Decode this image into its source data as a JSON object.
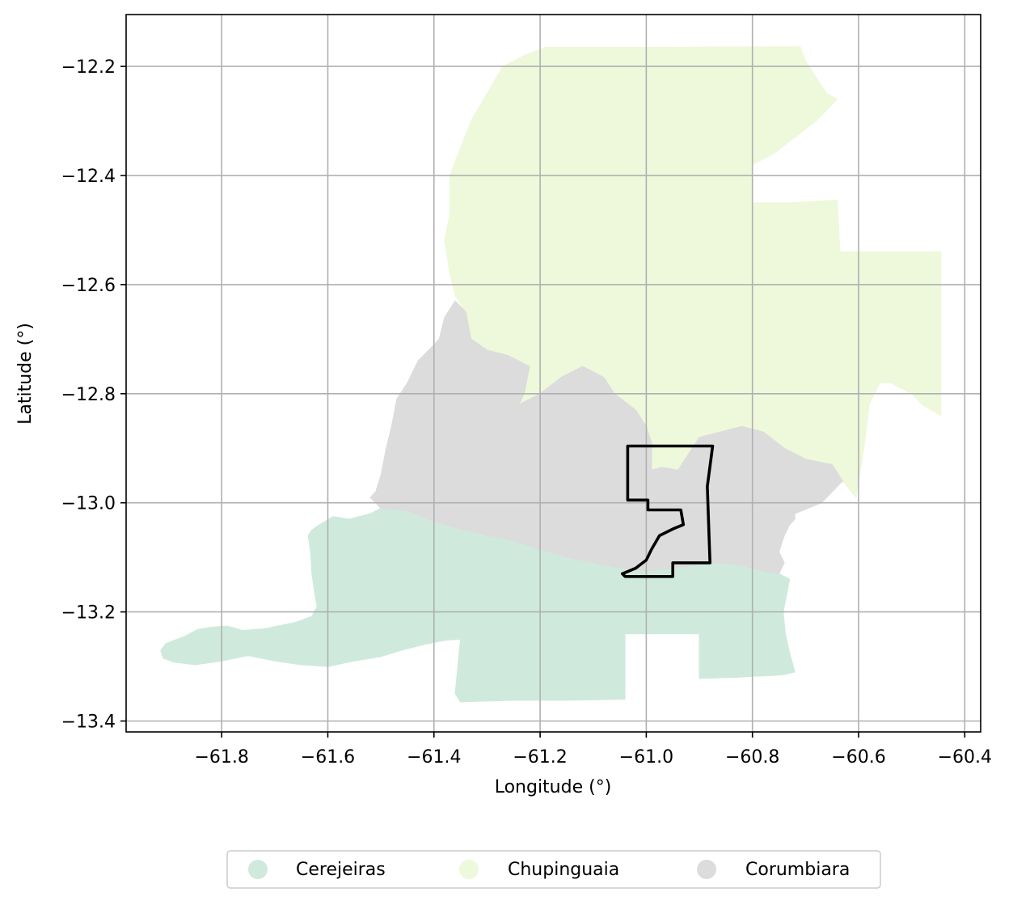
{
  "chart_data": {
    "type": "map",
    "xlabel": "Longitude (°)",
    "ylabel": "Latitude (°)",
    "xlim": [
      -61.98,
      -60.37
    ],
    "ylim": [
      -13.42,
      -12.105
    ],
    "x_ticks": [
      -61.8,
      -61.6,
      -61.4,
      -61.2,
      -61.0,
      -60.8,
      -60.6,
      -60.4
    ],
    "x_tick_labels": [
      "−61.8",
      "−61.6",
      "−61.4",
      "−61.2",
      "−61.0",
      "−60.8",
      "−60.6",
      "−60.4"
    ],
    "y_ticks": [
      -12.2,
      -12.4,
      -12.6,
      -12.8,
      -13.0,
      -13.2,
      -13.4
    ],
    "y_tick_labels": [
      "−12.2",
      "−12.4",
      "−12.6",
      "−12.8",
      "−13.0",
      "−13.2",
      "−13.4"
    ],
    "grid": true,
    "legend_position": "bottom-center, outside plot",
    "regions": [
      {
        "name": "Cerejeiras",
        "color": "#cfeadd",
        "polygon": [
          [
            -61.915,
            -13.271
          ],
          [
            -61.905,
            -13.258
          ],
          [
            -61.87,
            -13.245
          ],
          [
            -61.845,
            -13.232
          ],
          [
            -61.82,
            -13.228
          ],
          [
            -61.79,
            -13.226
          ],
          [
            -61.76,
            -13.234
          ],
          [
            -61.72,
            -13.231
          ],
          [
            -61.69,
            -13.225
          ],
          [
            -61.66,
            -13.219
          ],
          [
            -61.63,
            -13.208
          ],
          [
            -61.62,
            -13.19
          ],
          [
            -61.625,
            -13.165
          ],
          [
            -61.63,
            -13.13
          ],
          [
            -61.632,
            -13.095
          ],
          [
            -61.637,
            -13.06
          ],
          [
            -61.63,
            -13.05
          ],
          [
            -61.62,
            -13.043
          ],
          [
            -61.59,
            -13.025
          ],
          [
            -61.56,
            -13.03
          ],
          [
            -61.52,
            -13.02
          ],
          [
            -61.5,
            -13.01
          ],
          [
            -61.45,
            -13.015
          ],
          [
            -61.4,
            -13.035
          ],
          [
            -61.35,
            -13.048
          ],
          [
            -61.3,
            -13.06
          ],
          [
            -61.25,
            -13.07
          ],
          [
            -61.2,
            -13.085
          ],
          [
            -61.15,
            -13.1
          ],
          [
            -61.1,
            -13.11
          ],
          [
            -61.05,
            -13.12
          ],
          [
            -61.0,
            -13.125
          ],
          [
            -60.95,
            -13.12
          ],
          [
            -60.9,
            -13.113
          ],
          [
            -60.86,
            -13.11
          ],
          [
            -60.82,
            -13.115
          ],
          [
            -60.78,
            -13.125
          ],
          [
            -60.75,
            -13.13
          ],
          [
            -60.73,
            -13.14
          ],
          [
            -60.735,
            -13.165
          ],
          [
            -60.742,
            -13.2
          ],
          [
            -60.738,
            -13.24
          ],
          [
            -60.73,
            -13.275
          ],
          [
            -60.72,
            -13.31
          ],
          [
            -60.74,
            -13.315
          ],
          [
            -60.77,
            -13.317
          ],
          [
            -60.8,
            -13.318
          ],
          [
            -60.83,
            -13.32
          ],
          [
            -60.9,
            -13.322
          ],
          [
            -60.9,
            -13.24
          ],
          [
            -60.94,
            -13.24
          ],
          [
            -61.0,
            -13.24
          ],
          [
            -61.04,
            -13.24
          ],
          [
            -61.04,
            -13.36
          ],
          [
            -61.15,
            -13.362
          ],
          [
            -61.25,
            -13.362
          ],
          [
            -61.35,
            -13.365
          ],
          [
            -61.36,
            -13.35
          ],
          [
            -61.355,
            -13.3
          ],
          [
            -61.35,
            -13.25
          ],
          [
            -61.38,
            -13.252
          ],
          [
            -61.42,
            -13.26
          ],
          [
            -61.46,
            -13.27
          ],
          [
            -61.5,
            -13.282
          ],
          [
            -61.55,
            -13.29
          ],
          [
            -61.6,
            -13.3
          ],
          [
            -61.65,
            -13.297
          ],
          [
            -61.7,
            -13.29
          ],
          [
            -61.75,
            -13.28
          ],
          [
            -61.8,
            -13.29
          ],
          [
            -61.85,
            -13.297
          ],
          [
            -61.89,
            -13.292
          ],
          [
            -61.91,
            -13.285
          ]
        ]
      },
      {
        "name": "Chupinguaia",
        "color": "#eef8db",
        "polygon": [
          [
            -61.19,
            -12.165
          ],
          [
            -61.0,
            -12.165
          ],
          [
            -60.71,
            -12.164
          ],
          [
            -60.7,
            -12.19
          ],
          [
            -60.68,
            -12.22
          ],
          [
            -60.66,
            -12.25
          ],
          [
            -60.64,
            -12.26
          ],
          [
            -60.65,
            -12.27
          ],
          [
            -60.68,
            -12.3
          ],
          [
            -60.72,
            -12.33
          ],
          [
            -60.76,
            -12.36
          ],
          [
            -60.8,
            -12.38
          ],
          [
            -60.8,
            -12.45
          ],
          [
            -60.73,
            -12.45
          ],
          [
            -60.64,
            -12.445
          ],
          [
            -60.635,
            -12.54
          ],
          [
            -60.55,
            -12.54
          ],
          [
            -60.445,
            -12.54
          ],
          [
            -60.445,
            -12.84
          ],
          [
            -60.48,
            -12.82
          ],
          [
            -60.5,
            -12.8
          ],
          [
            -60.54,
            -12.78
          ],
          [
            -60.56,
            -12.78
          ],
          [
            -60.58,
            -12.82
          ],
          [
            -60.59,
            -12.9
          ],
          [
            -60.6,
            -12.96
          ],
          [
            -60.605,
            -12.99
          ],
          [
            -60.63,
            -12.96
          ],
          [
            -60.65,
            -12.93
          ],
          [
            -60.7,
            -12.92
          ],
          [
            -60.74,
            -12.9
          ],
          [
            -60.78,
            -12.87
          ],
          [
            -60.82,
            -12.86
          ],
          [
            -60.86,
            -12.87
          ],
          [
            -60.9,
            -12.88
          ],
          [
            -60.94,
            -12.94
          ],
          [
            -60.97,
            -12.935
          ],
          [
            -60.99,
            -12.94
          ],
          [
            -60.99,
            -12.89
          ],
          [
            -61.0,
            -12.86
          ],
          [
            -61.02,
            -12.83
          ],
          [
            -61.06,
            -12.8
          ],
          [
            -61.08,
            -12.77
          ],
          [
            -61.12,
            -12.75
          ],
          [
            -61.16,
            -12.77
          ],
          [
            -61.2,
            -12.8
          ],
          [
            -61.24,
            -12.82
          ],
          [
            -61.23,
            -12.8
          ],
          [
            -61.22,
            -12.75
          ],
          [
            -61.26,
            -12.73
          ],
          [
            -61.3,
            -12.72
          ],
          [
            -61.33,
            -12.7
          ],
          [
            -61.34,
            -12.65
          ],
          [
            -61.36,
            -12.62
          ],
          [
            -61.37,
            -12.58
          ],
          [
            -61.38,
            -12.52
          ],
          [
            -61.37,
            -12.47
          ],
          [
            -61.37,
            -12.4
          ],
          [
            -61.35,
            -12.35
          ],
          [
            -61.33,
            -12.3
          ],
          [
            -61.3,
            -12.25
          ],
          [
            -61.27,
            -12.2
          ],
          [
            -61.23,
            -12.18
          ]
        ]
      },
      {
        "name": "Corumbiara",
        "color": "#dcdcdc",
        "polygon": [
          [
            -61.36,
            -12.63
          ],
          [
            -61.38,
            -12.66
          ],
          [
            -61.39,
            -12.7
          ],
          [
            -61.41,
            -12.72
          ],
          [
            -61.43,
            -12.74
          ],
          [
            -61.45,
            -12.78
          ],
          [
            -61.47,
            -12.81
          ],
          [
            -61.48,
            -12.86
          ],
          [
            -61.49,
            -12.9
          ],
          [
            -61.5,
            -12.95
          ],
          [
            -61.51,
            -12.98
          ],
          [
            -61.52,
            -12.99
          ],
          [
            -61.5,
            -13.01
          ],
          [
            -61.45,
            -13.015
          ],
          [
            -61.4,
            -13.035
          ],
          [
            -61.35,
            -13.048
          ],
          [
            -61.3,
            -13.06
          ],
          [
            -61.25,
            -13.07
          ],
          [
            -61.2,
            -13.085
          ],
          [
            -61.15,
            -13.1
          ],
          [
            -61.1,
            -13.11
          ],
          [
            -61.05,
            -13.12
          ],
          [
            -61.0,
            -13.125
          ],
          [
            -60.95,
            -13.12
          ],
          [
            -60.9,
            -13.113
          ],
          [
            -60.86,
            -13.11
          ],
          [
            -60.82,
            -13.115
          ],
          [
            -60.78,
            -13.125
          ],
          [
            -60.75,
            -13.13
          ],
          [
            -60.74,
            -13.11
          ],
          [
            -60.75,
            -13.09
          ],
          [
            -60.74,
            -13.06
          ],
          [
            -60.73,
            -13.04
          ],
          [
            -60.72,
            -13.03
          ],
          [
            -60.72,
            -13.02
          ],
          [
            -60.67,
            -13.0
          ],
          [
            -60.63,
            -12.96
          ],
          [
            -60.65,
            -12.93
          ],
          [
            -60.7,
            -12.92
          ],
          [
            -60.74,
            -12.9
          ],
          [
            -60.78,
            -12.87
          ],
          [
            -60.82,
            -12.86
          ],
          [
            -60.86,
            -12.87
          ],
          [
            -60.9,
            -12.88
          ],
          [
            -60.94,
            -12.94
          ],
          [
            -60.97,
            -12.935
          ],
          [
            -60.99,
            -12.94
          ],
          [
            -60.99,
            -12.89
          ],
          [
            -61.0,
            -12.86
          ],
          [
            -61.02,
            -12.83
          ],
          [
            -61.06,
            -12.8
          ],
          [
            -61.08,
            -12.77
          ],
          [
            -61.12,
            -12.75
          ],
          [
            -61.16,
            -12.77
          ],
          [
            -61.2,
            -12.8
          ],
          [
            -61.24,
            -12.82
          ],
          [
            -61.23,
            -12.8
          ],
          [
            -61.22,
            -12.75
          ],
          [
            -61.26,
            -12.73
          ],
          [
            -61.3,
            -12.72
          ],
          [
            -61.33,
            -12.7
          ],
          [
            -61.34,
            -12.65
          ]
        ]
      }
    ],
    "overlay_outline": {
      "color": "#000000",
      "polygon": [
        [
          -61.035,
          -12.896
        ],
        [
          -60.875,
          -12.896
        ],
        [
          -60.885,
          -12.97
        ],
        [
          -60.88,
          -13.11
        ],
        [
          -60.95,
          -13.11
        ],
        [
          -60.95,
          -13.135
        ],
        [
          -61.04,
          -13.135
        ],
        [
          -61.045,
          -13.13
        ],
        [
          -61.02,
          -13.12
        ],
        [
          -61.0,
          -13.105
        ],
        [
          -60.99,
          -13.085
        ],
        [
          -60.975,
          -13.06
        ],
        [
          -60.95,
          -13.048
        ],
        [
          -60.93,
          -13.04
        ],
        [
          -60.935,
          -13.013
        ],
        [
          -60.997,
          -13.013
        ],
        [
          -60.997,
          -12.995
        ],
        [
          -61.035,
          -12.995
        ]
      ]
    }
  },
  "legend": {
    "items": [
      {
        "label": "Cerejeiras",
        "color": "#cfeadd"
      },
      {
        "label": "Chupinguaia",
        "color": "#eef8db"
      },
      {
        "label": "Corumbiara",
        "color": "#dcdcdc"
      }
    ]
  }
}
